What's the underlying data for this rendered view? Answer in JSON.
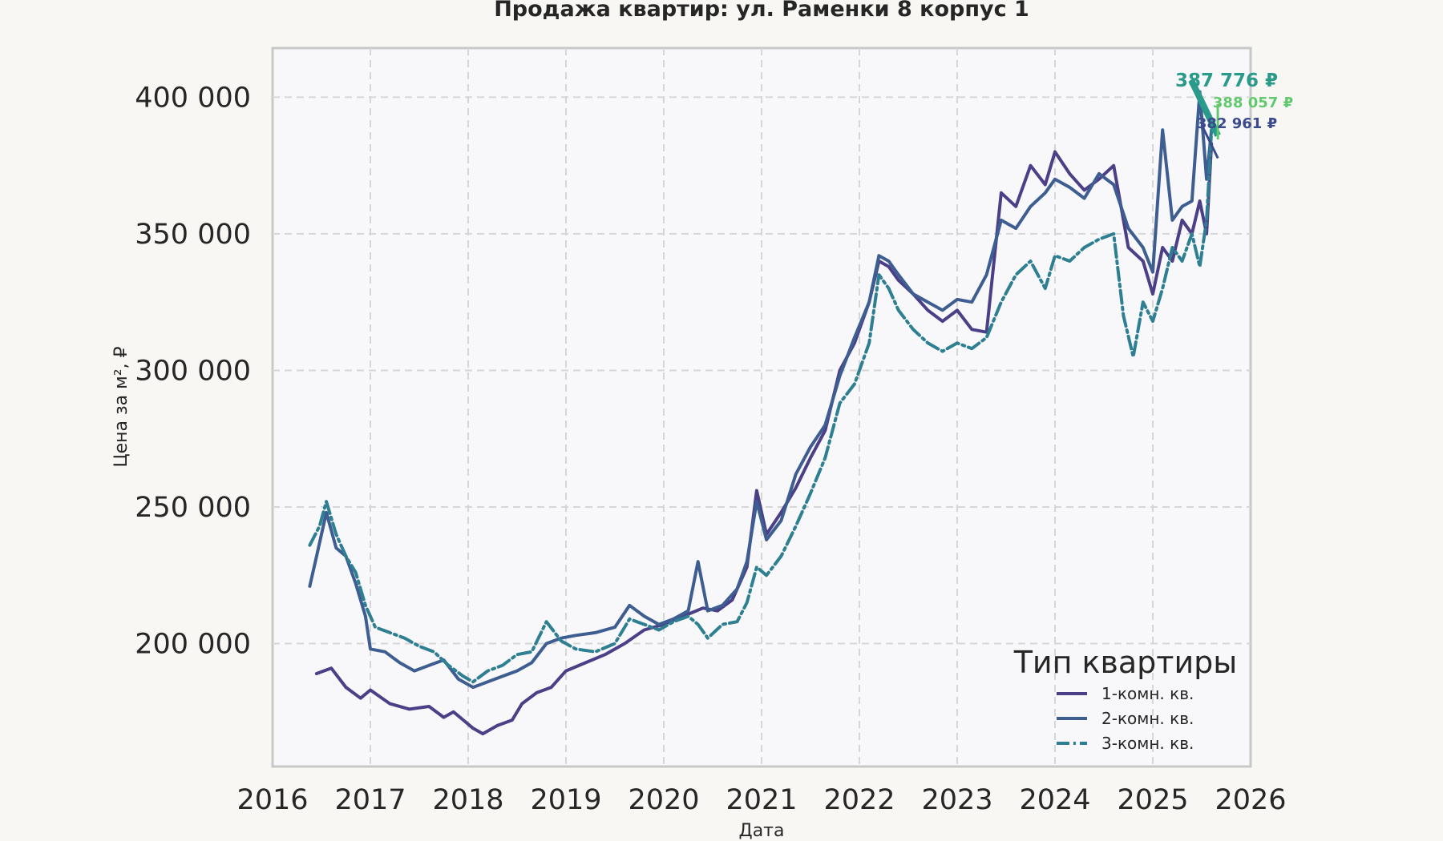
{
  "chart_data": {
    "type": "line",
    "title": "Продажа квартир: ул. Раменки 8 корпус 1",
    "xlabel": "Дата",
    "ylabel": "Цена за м², ₽",
    "xlim": [
      2016,
      2026
    ],
    "ylim": [
      155000,
      418000
    ],
    "x_ticks": [
      {
        "value": 2016,
        "label": "2016"
      },
      {
        "value": 2017,
        "label": "2017"
      },
      {
        "value": 2018,
        "label": "2018"
      },
      {
        "value": 2019,
        "label": "2019"
      },
      {
        "value": 2020,
        "label": "2020"
      },
      {
        "value": 2021,
        "label": "2021"
      },
      {
        "value": 2022,
        "label": "2022"
      },
      {
        "value": 2023,
        "label": "2023"
      },
      {
        "value": 2024,
        "label": "2024"
      },
      {
        "value": 2025,
        "label": "2025"
      },
      {
        "value": 2026,
        "label": "2026"
      }
    ],
    "y_ticks": [
      {
        "value": 200000,
        "label": "200 000"
      },
      {
        "value": 250000,
        "label": "250 000"
      },
      {
        "value": 300000,
        "label": "300 000"
      },
      {
        "value": 350000,
        "label": "350 000"
      },
      {
        "value": 400000,
        "label": "400 000"
      }
    ],
    "grid": true,
    "legend": {
      "title": "Тип квартиры",
      "position": "bottom-right"
    },
    "series": [
      {
        "name": "1-комн. кв.",
        "color": "#4b3f87",
        "style": "solid",
        "points": [
          [
            2016.45,
            189000
          ],
          [
            2016.6,
            191000
          ],
          [
            2016.75,
            184000
          ],
          [
            2016.9,
            180000
          ],
          [
            2017.0,
            183000
          ],
          [
            2017.2,
            178000
          ],
          [
            2017.4,
            176000
          ],
          [
            2017.6,
            177000
          ],
          [
            2017.75,
            173000
          ],
          [
            2017.85,
            175000
          ],
          [
            2017.95,
            172000
          ],
          [
            2018.05,
            169000
          ],
          [
            2018.15,
            167000
          ],
          [
            2018.3,
            170000
          ],
          [
            2018.45,
            172000
          ],
          [
            2018.55,
            178000
          ],
          [
            2018.7,
            182000
          ],
          [
            2018.85,
            184000
          ],
          [
            2019.0,
            190000
          ],
          [
            2019.2,
            193000
          ],
          [
            2019.4,
            196000
          ],
          [
            2019.6,
            200000
          ],
          [
            2019.8,
            205000
          ],
          [
            2020.0,
            207000
          ],
          [
            2020.2,
            210000
          ],
          [
            2020.4,
            213000
          ],
          [
            2020.55,
            212000
          ],
          [
            2020.7,
            216000
          ],
          [
            2020.85,
            228000
          ],
          [
            2020.95,
            256000
          ],
          [
            2021.05,
            240000
          ],
          [
            2021.2,
            248000
          ],
          [
            2021.35,
            257000
          ],
          [
            2021.5,
            268000
          ],
          [
            2021.65,
            278000
          ],
          [
            2021.8,
            300000
          ],
          [
            2021.95,
            310000
          ],
          [
            2022.1,
            325000
          ],
          [
            2022.2,
            340000
          ],
          [
            2022.3,
            338000
          ],
          [
            2022.4,
            333000
          ],
          [
            2022.55,
            328000
          ],
          [
            2022.7,
            322000
          ],
          [
            2022.85,
            318000
          ],
          [
            2023.0,
            322000
          ],
          [
            2023.15,
            315000
          ],
          [
            2023.3,
            314000
          ],
          [
            2023.45,
            365000
          ],
          [
            2023.6,
            360000
          ],
          [
            2023.75,
            375000
          ],
          [
            2023.9,
            368000
          ],
          [
            2024.0,
            380000
          ],
          [
            2024.15,
            372000
          ],
          [
            2024.3,
            366000
          ],
          [
            2024.45,
            370000
          ],
          [
            2024.6,
            375000
          ],
          [
            2024.75,
            345000
          ],
          [
            2024.9,
            340000
          ],
          [
            2025.0,
            328000
          ],
          [
            2025.1,
            345000
          ],
          [
            2025.2,
            340000
          ],
          [
            2025.3,
            355000
          ],
          [
            2025.4,
            350000
          ],
          [
            2025.48,
            362000
          ],
          [
            2025.55,
            350000
          ],
          [
            2025.6,
            382961
          ]
        ]
      },
      {
        "name": "2-комн. кв.",
        "color": "#3e5e92",
        "style": "solid",
        "points": [
          [
            2016.38,
            221000
          ],
          [
            2016.45,
            232000
          ],
          [
            2016.55,
            248000
          ],
          [
            2016.65,
            235000
          ],
          [
            2016.75,
            232000
          ],
          [
            2016.85,
            222000
          ],
          [
            2016.95,
            210000
          ],
          [
            2017.0,
            198000
          ],
          [
            2017.15,
            197000
          ],
          [
            2017.3,
            193000
          ],
          [
            2017.45,
            190000
          ],
          [
            2017.6,
            192000
          ],
          [
            2017.75,
            194000
          ],
          [
            2017.9,
            187000
          ],
          [
            2018.05,
            184000
          ],
          [
            2018.2,
            186000
          ],
          [
            2018.35,
            188000
          ],
          [
            2018.5,
            190000
          ],
          [
            2018.65,
            193000
          ],
          [
            2018.8,
            200000
          ],
          [
            2018.95,
            202000
          ],
          [
            2019.1,
            203000
          ],
          [
            2019.3,
            204000
          ],
          [
            2019.5,
            206000
          ],
          [
            2019.65,
            214000
          ],
          [
            2019.8,
            210000
          ],
          [
            2019.95,
            207000
          ],
          [
            2020.1,
            209000
          ],
          [
            2020.25,
            212000
          ],
          [
            2020.35,
            230000
          ],
          [
            2020.45,
            212000
          ],
          [
            2020.6,
            214000
          ],
          [
            2020.75,
            220000
          ],
          [
            2020.85,
            230000
          ],
          [
            2020.95,
            252000
          ],
          [
            2021.05,
            238000
          ],
          [
            2021.2,
            245000
          ],
          [
            2021.35,
            262000
          ],
          [
            2021.5,
            272000
          ],
          [
            2021.65,
            280000
          ],
          [
            2021.8,
            298000
          ],
          [
            2021.95,
            312000
          ],
          [
            2022.1,
            325000
          ],
          [
            2022.2,
            342000
          ],
          [
            2022.3,
            340000
          ],
          [
            2022.4,
            335000
          ],
          [
            2022.55,
            328000
          ],
          [
            2022.7,
            325000
          ],
          [
            2022.85,
            322000
          ],
          [
            2023.0,
            326000
          ],
          [
            2023.15,
            325000
          ],
          [
            2023.3,
            335000
          ],
          [
            2023.45,
            355000
          ],
          [
            2023.6,
            352000
          ],
          [
            2023.75,
            360000
          ],
          [
            2023.9,
            365000
          ],
          [
            2024.0,
            370000
          ],
          [
            2024.15,
            367000
          ],
          [
            2024.3,
            363000
          ],
          [
            2024.45,
            372000
          ],
          [
            2024.6,
            368000
          ],
          [
            2024.75,
            352000
          ],
          [
            2024.9,
            345000
          ],
          [
            2025.0,
            336000
          ],
          [
            2025.1,
            388000
          ],
          [
            2025.2,
            355000
          ],
          [
            2025.3,
            360000
          ],
          [
            2025.4,
            362000
          ],
          [
            2025.48,
            402000
          ],
          [
            2025.55,
            370000
          ],
          [
            2025.6,
            388057
          ]
        ]
      },
      {
        "name": "3-комн. кв.",
        "color": "#2f7f92",
        "style": "dashdot",
        "points": [
          [
            2016.38,
            236000
          ],
          [
            2016.48,
            243000
          ],
          [
            2016.55,
            252000
          ],
          [
            2016.65,
            240000
          ],
          [
            2016.75,
            232000
          ],
          [
            2016.85,
            226000
          ],
          [
            2016.95,
            214000
          ],
          [
            2017.05,
            206000
          ],
          [
            2017.2,
            204000
          ],
          [
            2017.35,
            202000
          ],
          [
            2017.5,
            199000
          ],
          [
            2017.65,
            197000
          ],
          [
            2017.8,
            192000
          ],
          [
            2017.95,
            188000
          ],
          [
            2018.05,
            186000
          ],
          [
            2018.2,
            190000
          ],
          [
            2018.35,
            192000
          ],
          [
            2018.5,
            196000
          ],
          [
            2018.65,
            197000
          ],
          [
            2018.8,
            208000
          ],
          [
            2018.95,
            201000
          ],
          [
            2019.1,
            198000
          ],
          [
            2019.3,
            197000
          ],
          [
            2019.5,
            200000
          ],
          [
            2019.65,
            209000
          ],
          [
            2019.8,
            207000
          ],
          [
            2019.95,
            205000
          ],
          [
            2020.1,
            208000
          ],
          [
            2020.25,
            210000
          ],
          [
            2020.35,
            207000
          ],
          [
            2020.45,
            202000
          ],
          [
            2020.6,
            207000
          ],
          [
            2020.75,
            208000
          ],
          [
            2020.85,
            215000
          ],
          [
            2020.95,
            228000
          ],
          [
            2021.05,
            225000
          ],
          [
            2021.2,
            232000
          ],
          [
            2021.35,
            243000
          ],
          [
            2021.5,
            255000
          ],
          [
            2021.65,
            268000
          ],
          [
            2021.8,
            288000
          ],
          [
            2021.95,
            295000
          ],
          [
            2022.1,
            310000
          ],
          [
            2022.2,
            335000
          ],
          [
            2022.3,
            330000
          ],
          [
            2022.4,
            322000
          ],
          [
            2022.55,
            315000
          ],
          [
            2022.7,
            310000
          ],
          [
            2022.85,
            307000
          ],
          [
            2023.0,
            310000
          ],
          [
            2023.15,
            308000
          ],
          [
            2023.3,
            312000
          ],
          [
            2023.45,
            325000
          ],
          [
            2023.6,
            335000
          ],
          [
            2023.75,
            340000
          ],
          [
            2023.9,
            330000
          ],
          [
            2024.0,
            342000
          ],
          [
            2024.15,
            340000
          ],
          [
            2024.3,
            345000
          ],
          [
            2024.45,
            348000
          ],
          [
            2024.6,
            350000
          ],
          [
            2024.7,
            320000
          ],
          [
            2024.8,
            305000
          ],
          [
            2024.9,
            325000
          ],
          [
            2025.0,
            318000
          ],
          [
            2025.1,
            330000
          ],
          [
            2025.2,
            345000
          ],
          [
            2025.3,
            340000
          ],
          [
            2025.4,
            350000
          ],
          [
            2025.48,
            338000
          ],
          [
            2025.55,
            355000
          ],
          [
            2025.6,
            387776
          ]
        ]
      }
    ],
    "annotations": [
      {
        "text": "387 776 ₽",
        "color": "#2a9a8a",
        "size": "large",
        "series": "3-комн. кв.",
        "value": 387776
      },
      {
        "text": "388 057 ₽",
        "color": "#63c96e",
        "size": "small",
        "series": "2-комн. кв.",
        "value": 388057
      },
      {
        "text": "382 961 ₽",
        "color": "#3a4a8c",
        "size": "small",
        "series": "1-комн. кв.",
        "value": 382961
      }
    ]
  }
}
